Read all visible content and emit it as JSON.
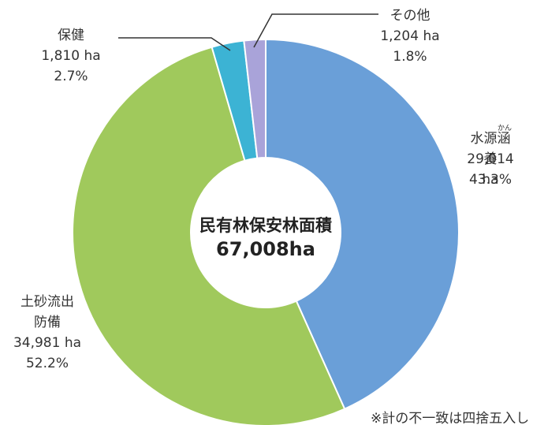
{
  "chart_data": {
    "type": "donut",
    "center_title": "民有林保安林面積",
    "center_value": "67,008ha",
    "categories": [
      "水源涵養",
      "土砂流出\n防備",
      "保健",
      "その他"
    ],
    "furigana": "かん",
    "values": [
      43.3,
      52.2,
      2.7,
      1.8
    ],
    "value_labels": [
      "43.3%",
      "52.2%",
      "2.7%",
      "1.8%"
    ],
    "area_labels": [
      "29,014 ha",
      "34,981 ha",
      "1,810 ha",
      "1,204 ha"
    ],
    "colors": [
      "#6a9fd8",
      "#a0c95c",
      "#3cb3d4",
      "#a9a3d9"
    ],
    "footnote": "※計の不一致は四捨五入し"
  }
}
